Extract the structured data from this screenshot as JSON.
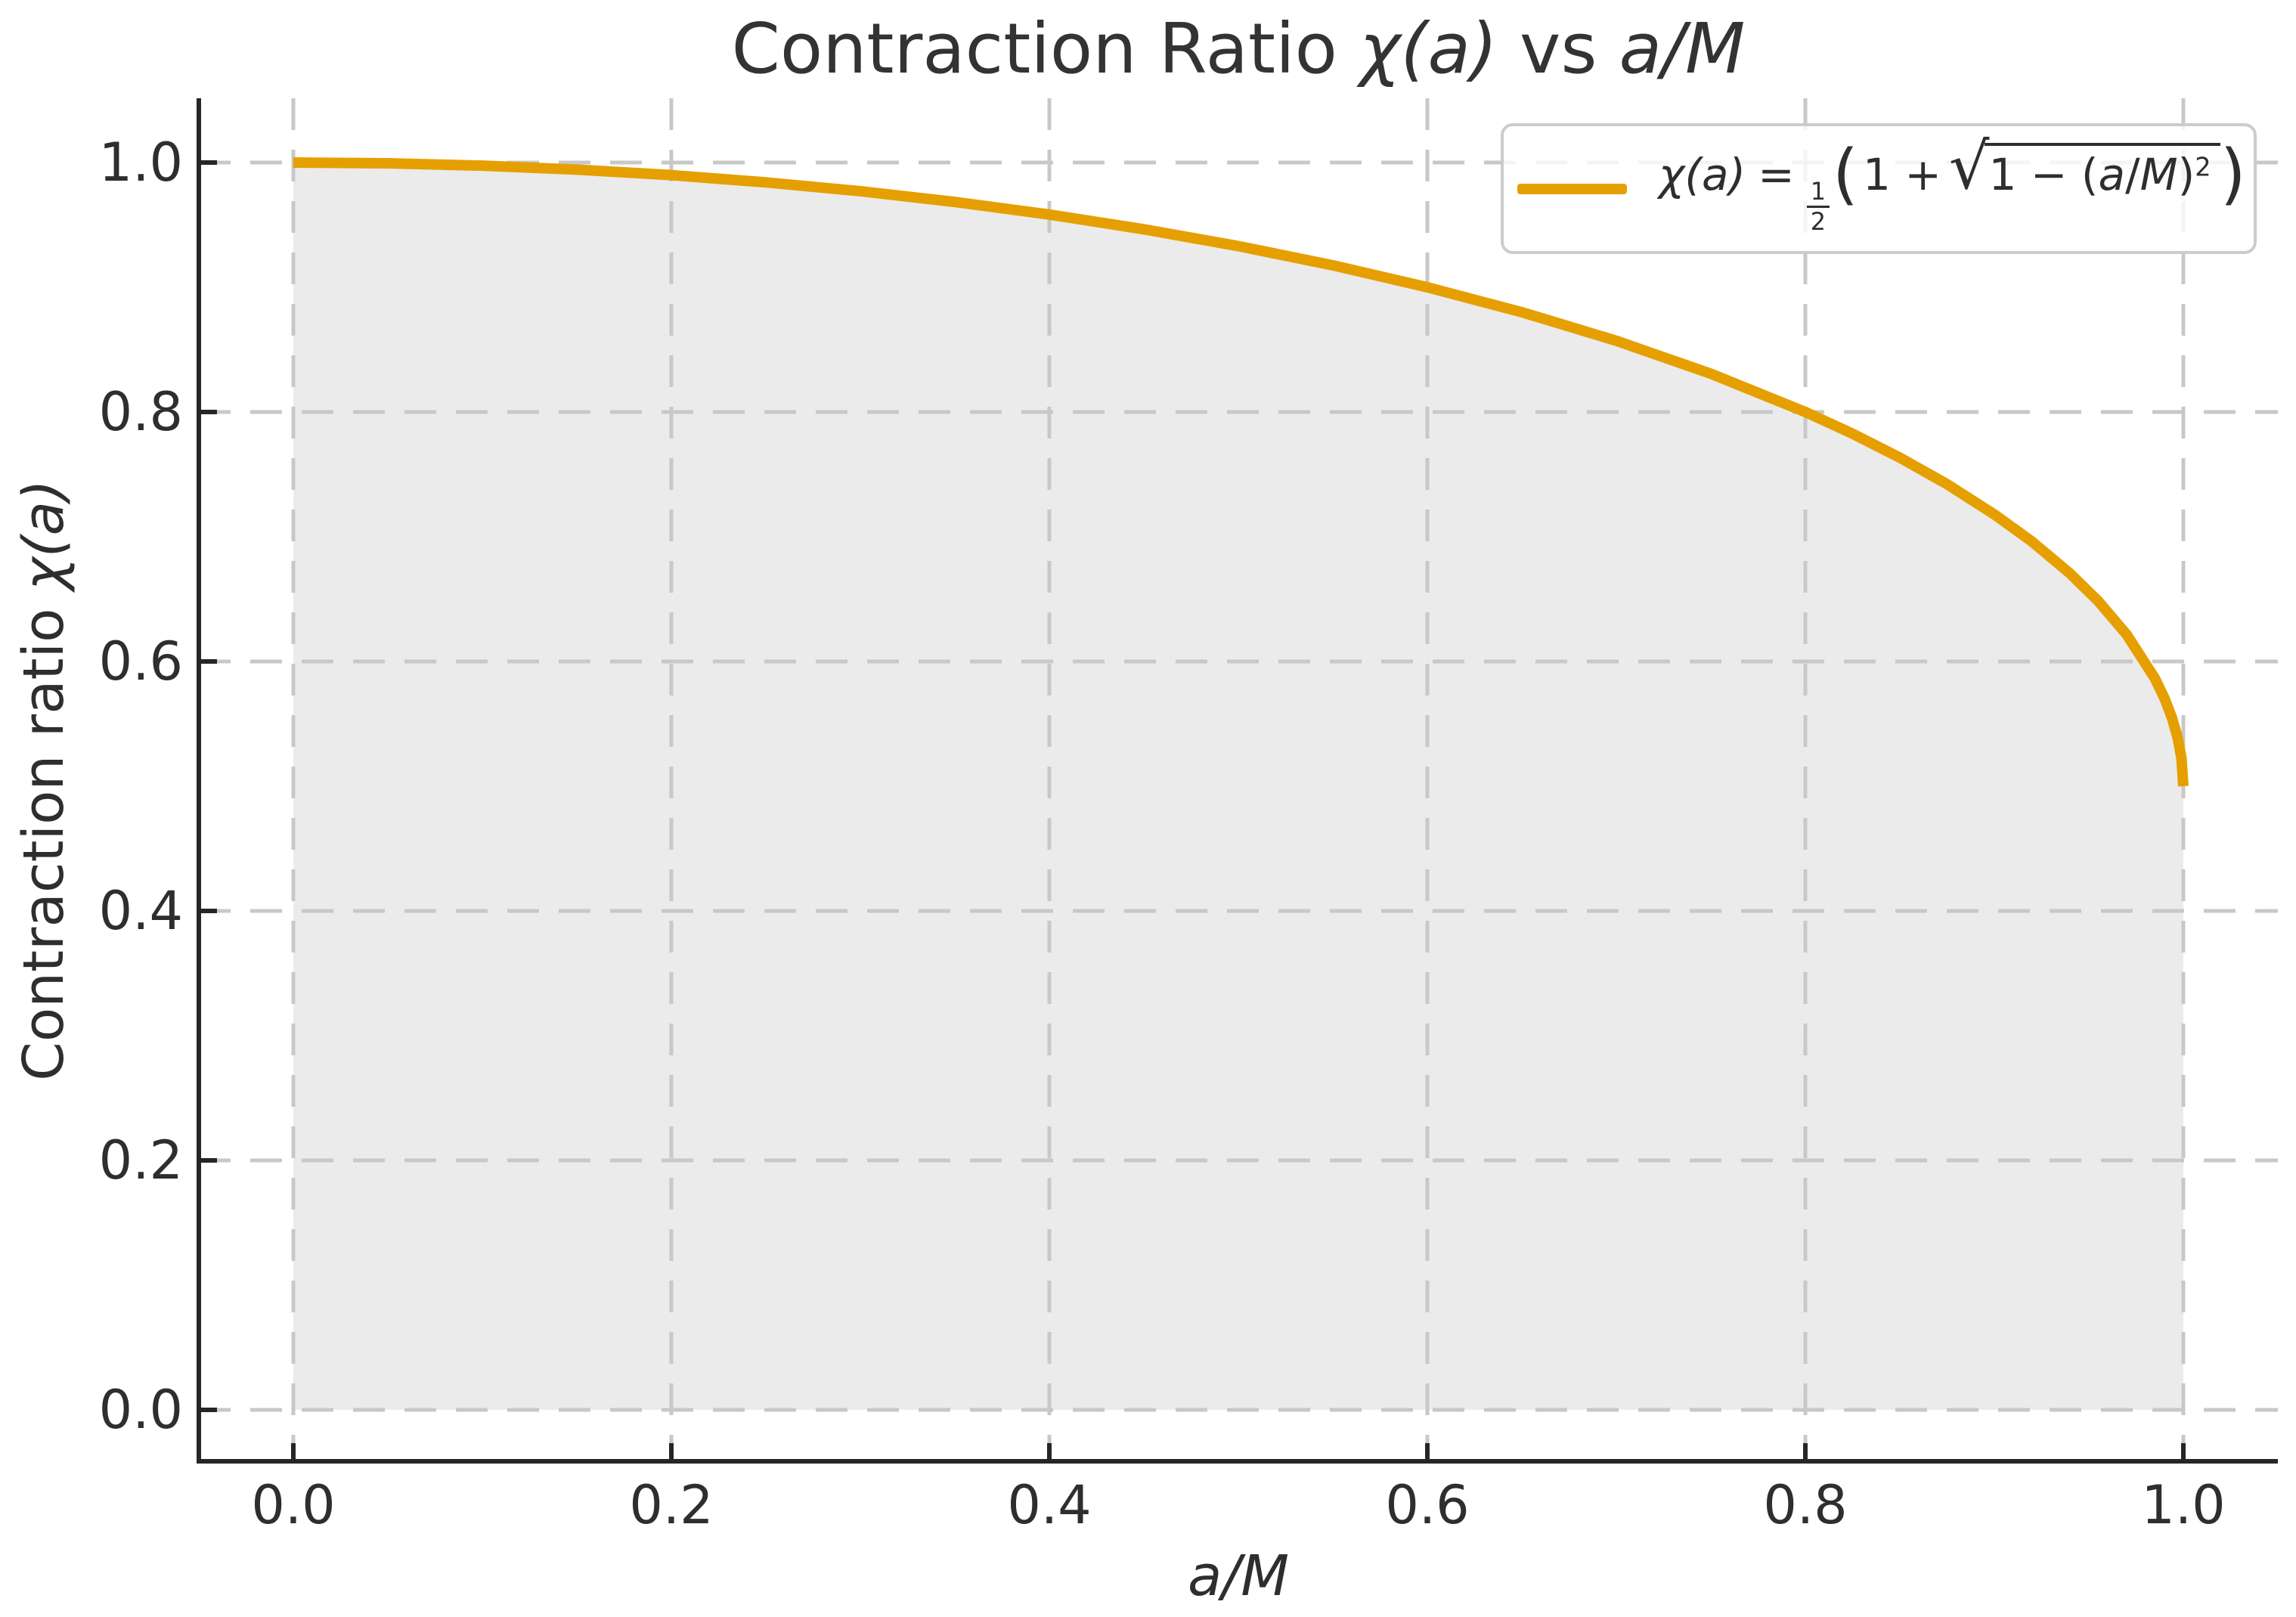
{
  "title": {
    "part1": "Contraction Ratio ",
    "math1": "χ(a)",
    "part2": " vs ",
    "math2": "a/M"
  },
  "axes": {
    "xlabel": "a/M",
    "ylabel_text": "Contraction ratio ",
    "ylabel_math": "χ(a)",
    "xtick_labels": [
      "0.0",
      "0.2",
      "0.4",
      "0.6",
      "0.8",
      "1.0"
    ],
    "ytick_labels": [
      "0.0",
      "0.2",
      "0.4",
      "0.6",
      "0.8",
      "1.0"
    ]
  },
  "legend": {
    "label_plain": "χ(a) = ½(1 + √(1 − (a/M)²))",
    "formula": {
      "lhs": "χ(a)",
      "eq": "=",
      "num": "1",
      "den": "2",
      "open": "(",
      "one_plus": "1 +",
      "radical": "√",
      "rad1": "1 − (",
      "rad_a": "a",
      "rad_slash": "/",
      "rad_M": "M",
      "rad_close": ")",
      "sup": "2",
      "close": ")"
    }
  },
  "colors": {
    "curve": "#E69F00",
    "fill": "#EBEBEB",
    "grid": "#C8C8C8",
    "spine": "#262626",
    "text": "#2e2e2e"
  },
  "chart_data": {
    "type": "line",
    "title": "Contraction Ratio χ(a) vs a/M",
    "xlabel": "a/M",
    "ylabel": "Contraction ratio χ(a)",
    "xlim": [
      -0.05,
      1.05
    ],
    "ylim": [
      -0.041,
      1.0515
    ],
    "xticks": [
      0.0,
      0.2,
      0.4,
      0.6,
      0.8,
      1.0
    ],
    "yticks": [
      0.0,
      0.2,
      0.4,
      0.6,
      0.8,
      1.0
    ],
    "grid": true,
    "grid_style": "dashed",
    "legend_position": "upper right",
    "series": [
      {
        "name": "χ(a) = ½(1 + √(1 − (a/M)²))",
        "color": "#E69F00",
        "fill_to_zero": true,
        "fill_color": "#EBEBEB",
        "x": [
          0,
          0.05,
          0.1,
          0.15,
          0.2,
          0.25,
          0.3,
          0.35,
          0.4,
          0.45,
          0.5,
          0.55,
          0.6,
          0.65,
          0.7,
          0.75,
          0.8,
          0.825,
          0.85,
          0.875,
          0.9,
          0.92,
          0.94,
          0.955,
          0.97,
          0.985,
          0.99,
          0.994,
          0.997,
          0.999,
          1.0
        ],
        "y": [
          1.0,
          0.9994,
          0.9975,
          0.9943,
          0.9899,
          0.9841,
          0.977,
          0.9684,
          0.9583,
          0.9465,
          0.933,
          0.9176,
          0.9,
          0.88,
          0.8571,
          0.8307,
          0.8,
          0.7826,
          0.7634,
          0.7421,
          0.7179,
          0.696,
          0.6706,
          0.6483,
          0.6216,
          0.5863,
          0.5705,
          0.5547,
          0.5387,
          0.5224,
          0.5
        ]
      }
    ]
  }
}
